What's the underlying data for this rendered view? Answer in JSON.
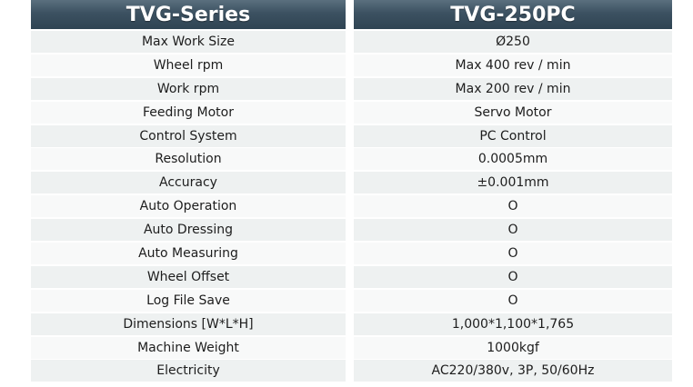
{
  "header": {
    "series_label": "TVG-Series",
    "model_label": "TVG-250PC"
  },
  "specs": [
    {
      "label": "Max Work Size",
      "value": "Ø250"
    },
    {
      "label": "Wheel rpm",
      "value": "Max 400 rev / min"
    },
    {
      "label": "Work rpm",
      "value": "Max 200 rev / min"
    },
    {
      "label": "Feeding Motor",
      "value": "Servo Motor"
    },
    {
      "label": "Control System",
      "value": "PC Control"
    },
    {
      "label": "Resolution",
      "value": "0.0005mm"
    },
    {
      "label": "Accuracy",
      "value": "±0.001mm"
    },
    {
      "label": "Auto Operation",
      "value": "O"
    },
    {
      "label": "Auto Dressing",
      "value": "O"
    },
    {
      "label": "Auto Measuring",
      "value": "O"
    },
    {
      "label": "Wheel Offset",
      "value": "O"
    },
    {
      "label": "Log File Save",
      "value": "O"
    },
    {
      "label": "Dimensions [W*L*H]",
      "value": "1,000*1,100*1,765"
    },
    {
      "label": "Machine Weight",
      "value": "1000kgf"
    },
    {
      "label": "Electricity",
      "value": "AC220/380v, 3P, 50/60Hz"
    }
  ]
}
